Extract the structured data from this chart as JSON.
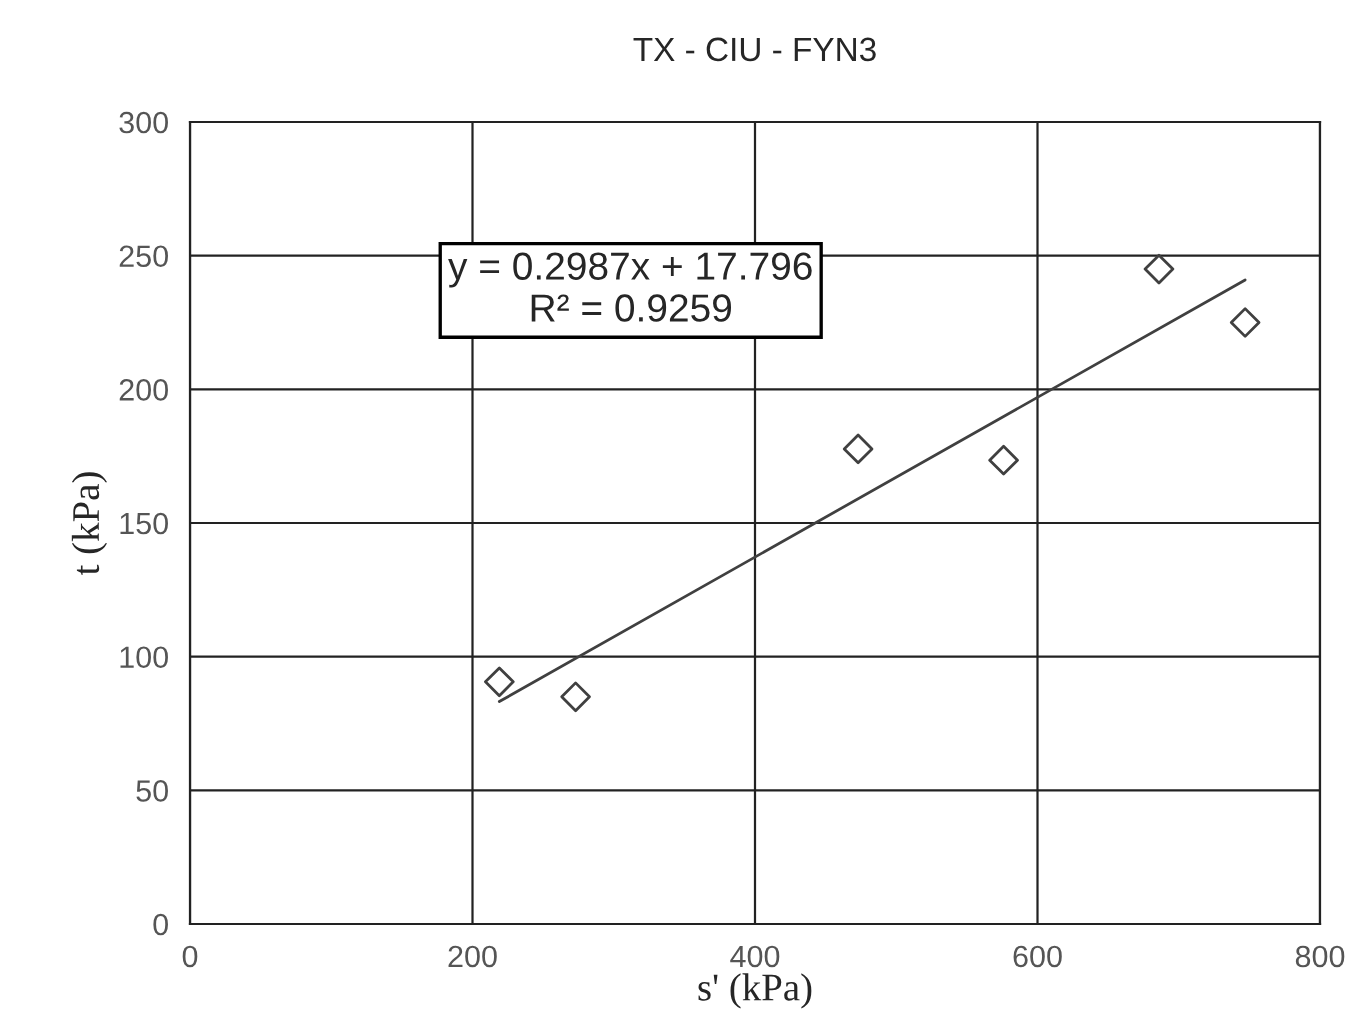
{
  "chart_data": {
    "type": "scatter",
    "title": "TX - CIU - FYN3",
    "xlabel": "s' (kPa)",
    "ylabel": "t (kPa)",
    "xlim": [
      0,
      800
    ],
    "xticks": [
      0,
      200,
      400,
      600,
      800
    ],
    "ylim": [
      0,
      300
    ],
    "yticks": [
      0,
      50,
      100,
      150,
      200,
      250,
      300
    ],
    "grid": true,
    "series": [
      {
        "marker": "diamond",
        "color": "#404040",
        "x": [
          219,
          273,
          473,
          576,
          686,
          747
        ],
        "values": [
          90.6,
          85,
          177.7,
          173.5,
          245,
          225
        ]
      },
      {
        "type": "line",
        "color": "#404040",
        "x": [
          219,
          747
        ],
        "values": [
          83.2,
          240.9
        ],
        "line_style": "solid"
      }
    ],
    "annotations": [
      "y = 0.2987x + 17.796\nR² = 0.9259"
    ]
  }
}
